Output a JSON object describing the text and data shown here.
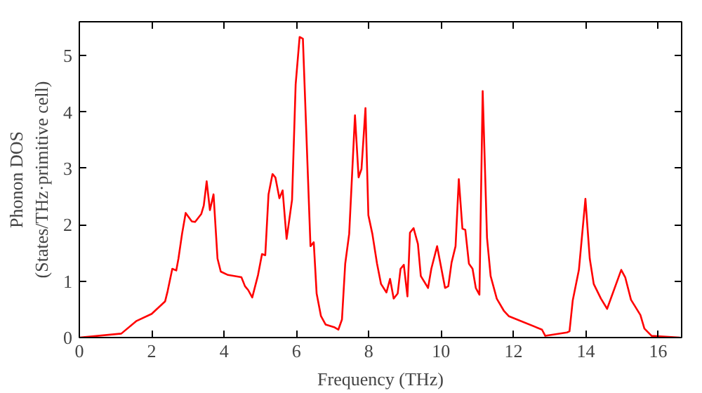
{
  "chart_data": {
    "type": "line",
    "xlabel": "Frequency (THz)",
    "ylabel": "Phonon DOS\n(States/THz·primitive cell)",
    "xlim": [
      0,
      16.65
    ],
    "ylim": [
      0,
      5.6
    ],
    "xticks": [
      0,
      2,
      4,
      6,
      8,
      10,
      12,
      14,
      16
    ],
    "yticks": [
      0,
      1,
      2,
      3,
      4,
      5
    ],
    "grid": false,
    "line_style": "solid",
    "series": [
      {
        "color": "#ff0000",
        "x": [
          0,
          1.16,
          1.57,
          2.0,
          2.37,
          2.44,
          2.57,
          2.68,
          2.74,
          2.84,
          2.94,
          3.11,
          3.2,
          3.37,
          3.44,
          3.52,
          3.61,
          3.71,
          3.82,
          3.91,
          4.11,
          4.48,
          4.58,
          4.67,
          4.78,
          4.94,
          5.05,
          5.14,
          5.23,
          5.34,
          5.42,
          5.53,
          5.62,
          5.73,
          5.88,
          5.98,
          6.09,
          6.18,
          6.39,
          6.48,
          6.56,
          6.68,
          6.81,
          7.06,
          7.16,
          7.26,
          7.35,
          7.46,
          7.62,
          7.72,
          7.8,
          7.91,
          7.99,
          8.1,
          8.23,
          8.34,
          8.49,
          8.59,
          8.69,
          8.8,
          8.88,
          8.97,
          9.07,
          9.14,
          9.24,
          9.36,
          9.44,
          9.64,
          9.73,
          9.89,
          10.11,
          10.2,
          10.29,
          10.4,
          10.49,
          10.59,
          10.67,
          10.77,
          10.87,
          10.96,
          11.06,
          11.15,
          11.27,
          11.37,
          11.54,
          11.74,
          11.87,
          12.79,
          12.88,
          13.48,
          13.55,
          13.64,
          13.81,
          13.99,
          14.11,
          14.22,
          14.42,
          14.59,
          14.98,
          15.09,
          15.25,
          15.51,
          15.62,
          15.82,
          16.6
        ],
        "values": [
          0,
          0.07,
          0.29,
          0.42,
          0.64,
          0.82,
          1.22,
          1.19,
          1.4,
          1.84,
          2.21,
          2.06,
          2.05,
          2.19,
          2.34,
          2.77,
          2.26,
          2.54,
          1.4,
          1.17,
          1.11,
          1.07,
          0.91,
          0.84,
          0.71,
          1.11,
          1.48,
          1.46,
          2.54,
          2.9,
          2.84,
          2.47,
          2.61,
          1.75,
          2.44,
          4.49,
          5.33,
          5.3,
          1.62,
          1.69,
          0.78,
          0.38,
          0.23,
          0.18,
          0.14,
          0.32,
          1.31,
          1.84,
          3.94,
          2.84,
          2.99,
          4.07,
          2.17,
          1.84,
          1.31,
          0.95,
          0.8,
          1.04,
          0.69,
          0.78,
          1.22,
          1.29,
          0.73,
          1.86,
          1.94,
          1.66,
          1.09,
          0.88,
          1.22,
          1.62,
          0.88,
          0.91,
          1.33,
          1.62,
          2.81,
          1.93,
          1.91,
          1.31,
          1.22,
          0.88,
          0.76,
          4.37,
          1.77,
          1.09,
          0.69,
          0.47,
          0.38,
          0.14,
          0.03,
          0.09,
          0.11,
          0.66,
          1.2,
          2.46,
          1.4,
          0.95,
          0.69,
          0.51,
          1.2,
          1.07,
          0.67,
          0.4,
          0.16,
          0.03,
          0
        ]
      }
    ]
  }
}
